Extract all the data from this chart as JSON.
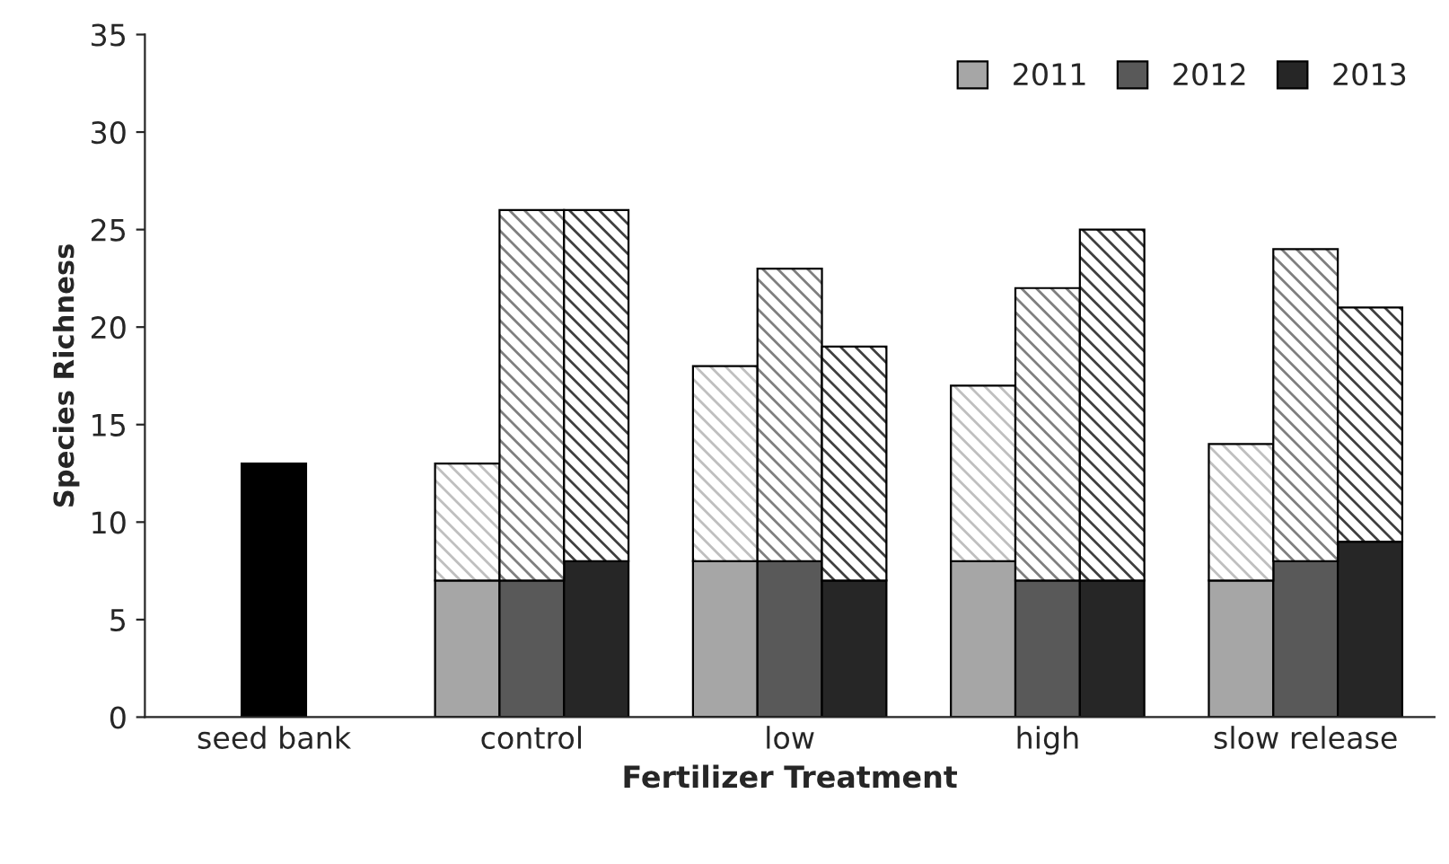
{
  "chart_data": {
    "type": "bar",
    "stacked": true,
    "xlabel": "Fertilizer Treatment",
    "ylabel": "Species Richness",
    "categories": [
      null,
      "seed bank",
      null,
      null,
      null,
      "control",
      null,
      null,
      null,
      "low",
      null,
      null,
      null,
      "high",
      null,
      null,
      null,
      "slow release",
      null,
      null
    ],
    "series": [
      {
        "color": "#000000",
        "values": [
          null,
          13,
          null,
          null,
          null,
          null,
          null,
          null,
          null,
          null,
          null,
          null,
          null,
          null,
          null,
          null,
          null,
          null,
          null,
          null
        ]
      },
      {
        "name": "2011",
        "color": "#a6a6a6",
        "values": [
          null,
          null,
          null,
          null,
          7,
          null,
          null,
          null,
          8,
          null,
          null,
          null,
          8,
          null,
          null,
          null,
          7,
          null,
          null,
          null
        ]
      },
      {
        "name": "2012",
        "color": "#595959",
        "values": [
          null,
          null,
          null,
          null,
          null,
          7,
          null,
          null,
          null,
          8,
          null,
          null,
          null,
          7,
          null,
          null,
          null,
          8,
          null,
          null
        ]
      },
      {
        "name": "2013",
        "color": "#262626",
        "values": [
          null,
          null,
          null,
          null,
          null,
          null,
          8,
          null,
          null,
          null,
          7,
          null,
          null,
          null,
          7,
          null,
          null,
          null,
          9,
          null
        ]
      },
      {
        "color": "#bfbfbf",
        "values": [
          null,
          null,
          null,
          null,
          6,
          null,
          null,
          null,
          10,
          null,
          null,
          null,
          9,
          null,
          null,
          null,
          7,
          null,
          null,
          null
        ]
      },
      {
        "color": "#7f7f7f",
        "values": [
          null,
          null,
          null,
          null,
          null,
          19,
          null,
          null,
          null,
          15,
          null,
          null,
          null,
          15,
          null,
          null,
          null,
          16,
          null,
          null
        ]
      },
      {
        "color": "#3f3f3f",
        "values": [
          null,
          null,
          null,
          null,
          null,
          null,
          18,
          null,
          null,
          null,
          12,
          null,
          null,
          null,
          18,
          null,
          null,
          null,
          12,
          null
        ]
      }
    ],
    "ylim": [
      0,
      35
    ],
    "yticks": [
      0,
      5,
      10,
      15,
      20,
      25,
      30,
      35
    ],
    "grid": false,
    "legend": "top right"
  }
}
